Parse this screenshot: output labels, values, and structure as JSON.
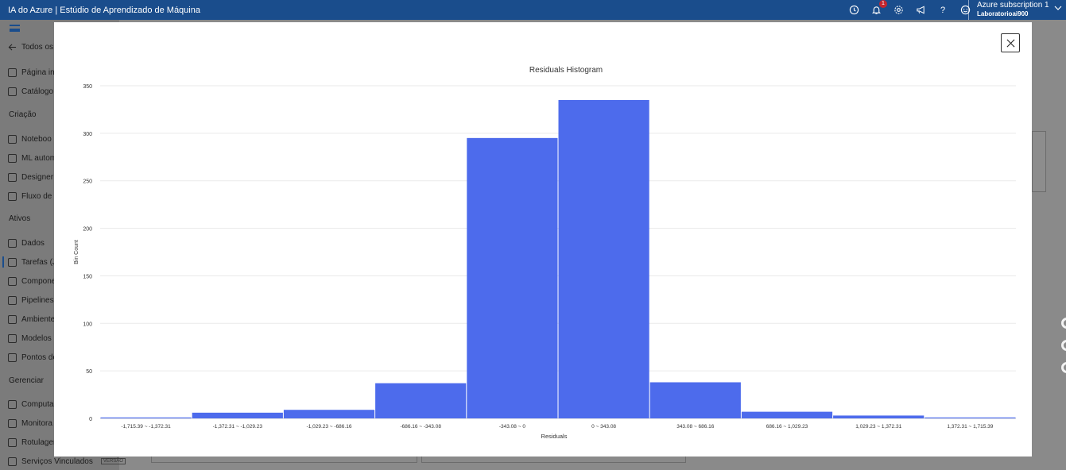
{
  "app": {
    "title": "IA do Azure | Estúdio de Aprendizado de Máquina",
    "notification_count": "1",
    "subscription": "Azure subscription 1",
    "workspace": "Laboratorioai900"
  },
  "sidebar": {
    "back_label": "Todos os",
    "items_top": [
      {
        "label": "Página ini",
        "icon": "home-icon"
      },
      {
        "label": "Catálogo",
        "icon": "catalog-icon"
      }
    ],
    "section_creation": "Criação",
    "items_creation": [
      {
        "label": "Noteboo",
        "icon": "notebook-icon"
      },
      {
        "label": "ML autom",
        "icon": "automl-icon"
      },
      {
        "label": "Designer",
        "icon": "designer-icon"
      },
      {
        "label": "Fluxo de p",
        "icon": "prompt-flow-icon"
      }
    ],
    "section_assets": "Ativos",
    "items_assets": [
      {
        "label": "Dados",
        "icon": "data-icon"
      },
      {
        "label": "Tarefas (J",
        "icon": "jobs-icon"
      },
      {
        "label": "Compone",
        "icon": "components-icon"
      },
      {
        "label": "Pipelines",
        "icon": "pipelines-icon"
      },
      {
        "label": "Ambiente",
        "icon": "environments-icon"
      },
      {
        "label": "Modelos",
        "icon": "models-icon"
      },
      {
        "label": "Pontos de",
        "icon": "endpoints-icon"
      }
    ],
    "section_manage": "Gerenciar",
    "items_manage": [
      {
        "label": "Computa",
        "icon": "compute-icon"
      },
      {
        "label": "Monitora",
        "icon": "monitoring-icon"
      },
      {
        "label": "Rotulager",
        "icon": "labeling-icon"
      },
      {
        "label": "Serviços Vinculados",
        "icon": "linked-services-icon"
      }
    ],
    "preview_tag": "VERSÃO"
  },
  "chart_data": {
    "type": "bar",
    "title": "Residuals Histogram",
    "xlabel": "Residuals",
    "ylabel": "Bin Count",
    "ylim": [
      0,
      350
    ],
    "yticks": [
      0,
      50,
      100,
      150,
      200,
      250,
      300,
      350
    ],
    "categories": [
      "-1,715.39 ~ -1,372.31",
      "-1,372.31 ~ -1,029.23",
      "-1,029.23 ~ -686.16",
      "-686.16 ~ -343.08",
      "-343.08 ~ 0",
      "0 ~ 343.08",
      "343.08 ~ 686.16",
      "686.16 ~ 1,029.23",
      "1,029.23 ~ 1,372.31",
      "1,372.31 ~ 1,715.39"
    ],
    "values": [
      1,
      6,
      9,
      37,
      295,
      335,
      38,
      7,
      3,
      1
    ],
    "color": "#4d6bec",
    "grid": true
  }
}
